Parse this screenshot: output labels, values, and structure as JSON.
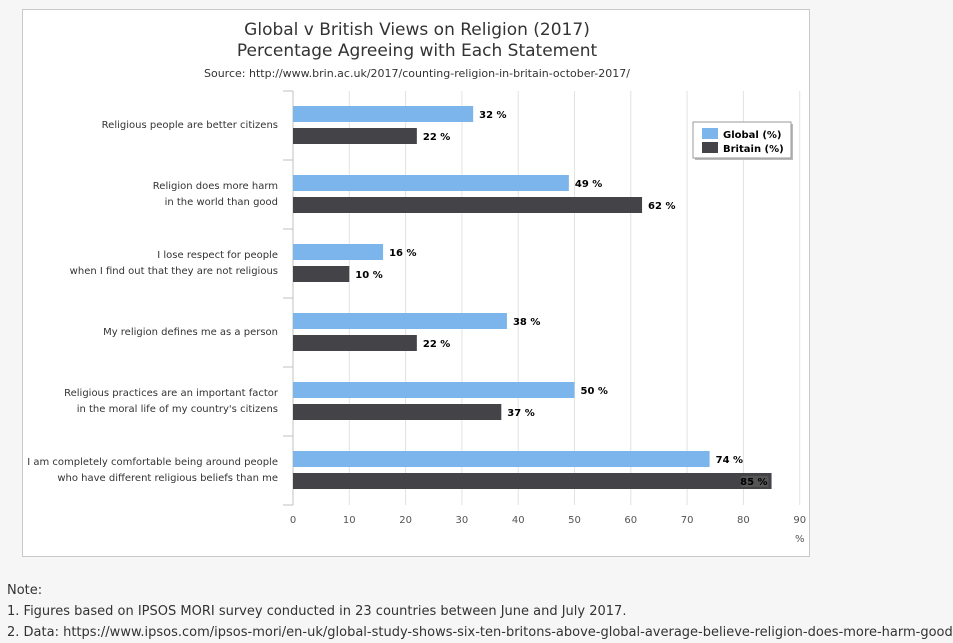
{
  "chart_data": {
    "type": "bar",
    "orientation": "horizontal",
    "title": [
      "Global v British Views on Religion (2017)",
      "Percentage Agreeing with Each Statement"
    ],
    "subtitle": "Source: http://www.brin.ac.uk/2017/counting-religion-in-britain-october-2017/",
    "categories": [
      [
        "Religious people are better citizens"
      ],
      [
        "Religion does more harm",
        "in the world than good"
      ],
      [
        "I lose respect for people",
        "when I find out that they are not religious"
      ],
      [
        "My religion defines me as a person"
      ],
      [
        "Religious practices are an important factor",
        "in the moral life of my country's citizens"
      ],
      [
        "I am completely comfortable being around people",
        "who have different religious beliefs than me"
      ]
    ],
    "series": [
      {
        "name": "Global (%)",
        "color": "#7cb5ec",
        "values": [
          32,
          49,
          16,
          38,
          50,
          74
        ]
      },
      {
        "name": "Britain (%)",
        "color": "#434348",
        "values": [
          22,
          62,
          10,
          22,
          37,
          85
        ]
      }
    ],
    "value_suffix": " %",
    "xlim": [
      0,
      90
    ],
    "xticks": [
      0,
      10,
      20,
      30,
      40,
      50,
      60,
      70,
      80,
      90
    ],
    "xlabel": "%",
    "grid": true,
    "legend_position": "top-right"
  },
  "notes": {
    "heading": "Note:",
    "lines": [
      "1. Figures based on IPSOS MORI survey conducted in 23 countries between June and July 2017.",
      "2. Data: https://www.ipsos.com/ipsos-mori/en-uk/global-study-shows-six-ten-britons-above-global-average-believe-religion-does-more-harm-good"
    ]
  }
}
